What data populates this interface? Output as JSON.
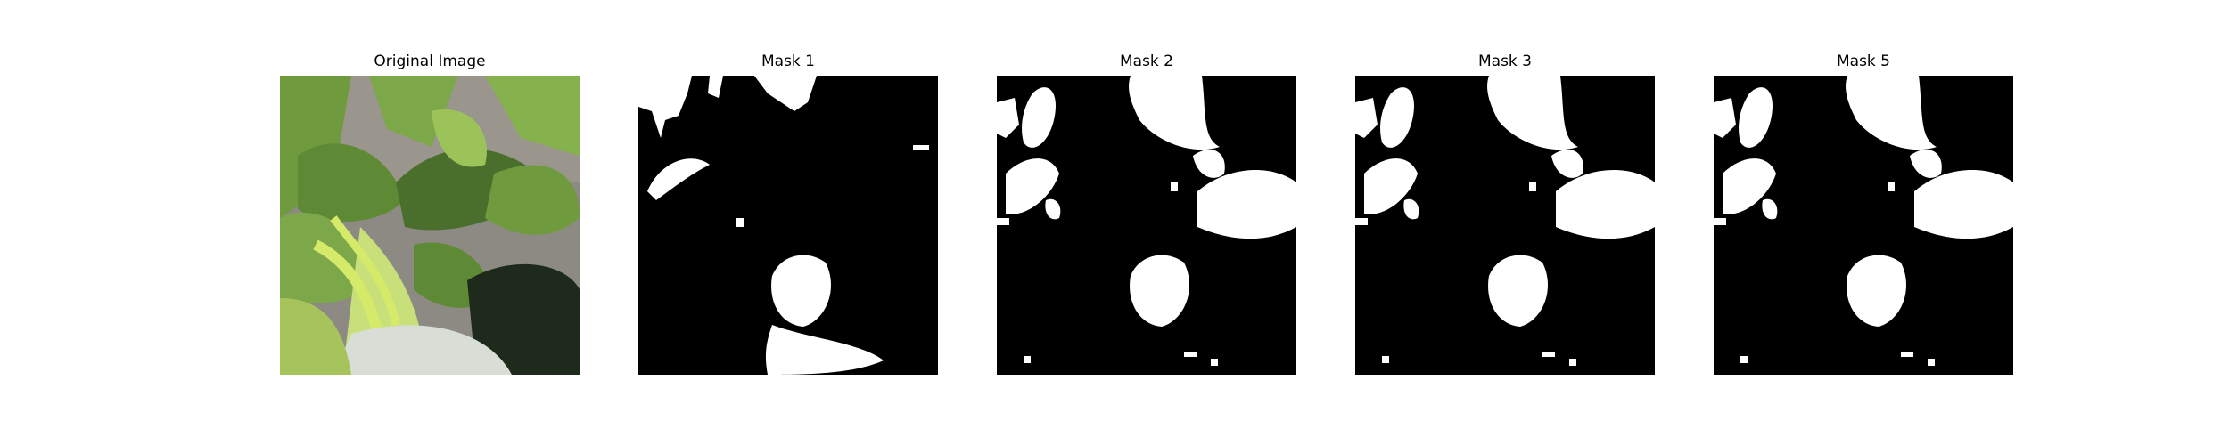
{
  "figure": {
    "panels": [
      {
        "title": "Original Image"
      },
      {
        "title": "Mask 1"
      },
      {
        "title": "Mask 2"
      },
      {
        "title": "Mask 3"
      },
      {
        "title": "Mask 5"
      }
    ]
  },
  "colors": {
    "background": "#ffffff",
    "mask_background": "#000000",
    "mask_foreground": "#ffffff",
    "leaf_green": "#7da84a",
    "leaf_dark": "#4a6f2c",
    "leaf_light": "#c9e07a",
    "stem_yellow": "#d6ea6a",
    "soil_gray": "#8d8a84",
    "pot_white": "#d8ded6",
    "pot_dark": "#1d2a1c"
  }
}
